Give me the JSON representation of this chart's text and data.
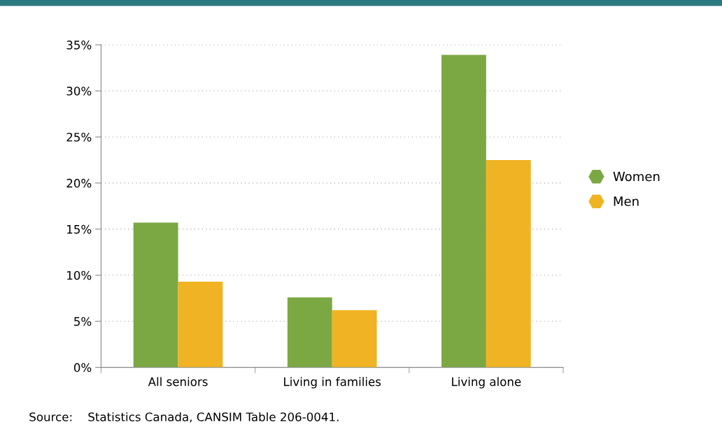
{
  "chart_data": {
    "type": "bar",
    "categories": [
      "All seniors",
      "Living in families",
      "Living alone"
    ],
    "series": [
      {
        "name": "Women",
        "color": "#7ba843",
        "values": [
          15.7,
          7.6,
          33.9
        ]
      },
      {
        "name": "Men",
        "color": "#f0b323",
        "values": [
          9.3,
          6.2,
          22.5
        ]
      }
    ],
    "ylim": [
      0,
      35
    ],
    "yticks": [
      {
        "value": 0,
        "label": "0%"
      },
      {
        "value": 5,
        "label": "5%"
      },
      {
        "value": 10,
        "label": "10%"
      },
      {
        "value": 15,
        "label": "15%"
      },
      {
        "value": 20,
        "label": "20%"
      },
      {
        "value": 25,
        "label": "25%"
      },
      {
        "value": 30,
        "label": "30%"
      },
      {
        "value": 35,
        "label": "35%"
      }
    ],
    "grid": "y",
    "legend": "right",
    "annotations": [
      "Source:    Statistics Canada, CANSIM Table 206-0041."
    ]
  }
}
